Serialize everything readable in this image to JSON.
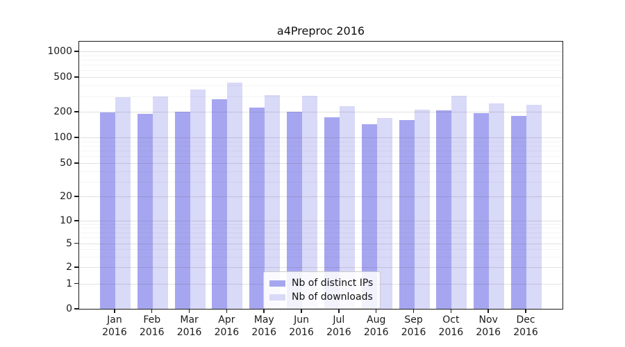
{
  "title": "a4Preproc 2016",
  "colors": {
    "distinct_ips": "#a6a6f0",
    "downloads": "#d9d9f8",
    "axis": "#1a1a1a",
    "grid_major": "#d7d7d7",
    "grid_minor": "#f1f1f1",
    "legend_border": "#cccccc"
  },
  "legend": {
    "items": [
      {
        "label": "Nb of distinct IPs",
        "series": "distinct_ips"
      },
      {
        "label": "Nb of downloads",
        "series": "downloads"
      }
    ],
    "position": "lower center"
  },
  "chart_data": {
    "type": "bar",
    "title": "a4Preproc 2016",
    "categories": [
      "Jan 2016",
      "Feb 2016",
      "Mar 2016",
      "Apr 2016",
      "May 2016",
      "Jun 2016",
      "Jul 2016",
      "Aug 2016",
      "Sep 2016",
      "Oct 2016",
      "Nov 2016",
      "Dec 2016"
    ],
    "x_tick_labels_line1": [
      "Jan",
      "Feb",
      "Mar",
      "Apr",
      "May",
      "Jun",
      "Jul",
      "Aug",
      "Sep",
      "Oct",
      "Nov",
      "Dec"
    ],
    "x_tick_labels_line2": "2016",
    "series": [
      {
        "name": "Nb of distinct IPs",
        "color": "#a6a6f0",
        "values": [
          197,
          189,
          201,
          276,
          222,
          200,
          171,
          142,
          160,
          209,
          191,
          180
        ]
      },
      {
        "name": "Nb of downloads",
        "color": "#d9d9f8",
        "values": [
          295,
          300,
          362,
          430,
          312,
          303,
          230,
          170,
          212,
          307,
          249,
          240
        ]
      }
    ],
    "xlabel": "",
    "ylabel": "",
    "y_scale": "symlog",
    "y_ticks": [
      1000,
      500,
      200,
      100,
      50,
      20,
      10,
      5,
      2,
      1,
      0
    ],
    "y_minor_ticks": [
      3,
      4,
      6,
      7,
      8,
      9,
      30,
      40,
      60,
      70,
      80,
      90,
      300,
      400,
      600,
      700,
      800,
      900
    ],
    "ylim": [
      0,
      1500
    ],
    "grid": true,
    "legend_position": "lower center"
  }
}
